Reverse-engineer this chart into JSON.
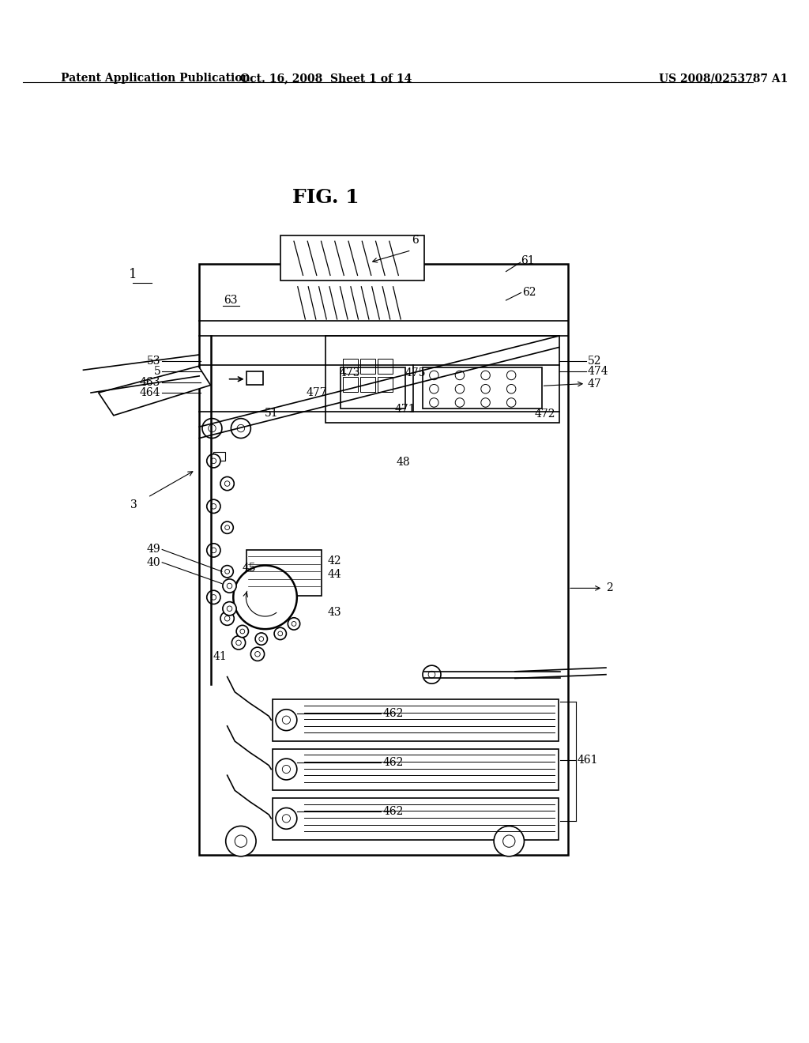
{
  "bg_color": "#ffffff",
  "header_left": "Patent Application Publication",
  "header_mid": "Oct. 16, 2008  Sheet 1 of 14",
  "header_right": "US 2008/0253787 A1",
  "fig_title": "FIG. 1",
  "label_1": "1",
  "label_2": "2",
  "label_3": "3",
  "label_6": "6",
  "label_47": "47",
  "label_48": "48",
  "label_49": "49",
  "label_40": "40",
  "label_41": "41",
  "label_42": "42",
  "label_43": "43",
  "label_44": "44",
  "label_45": "45",
  "label_51": "51",
  "label_52": "52",
  "label_53": "53",
  "label_5": "5",
  "label_61": "61",
  "label_62": "62",
  "label_63": "63",
  "label_461": "461",
  "label_462": "462",
  "label_463": "463",
  "label_464": "464",
  "label_471": "471",
  "label_472": "472",
  "label_473": "473",
  "label_474": "474",
  "label_475": "475",
  "label_477": "477"
}
